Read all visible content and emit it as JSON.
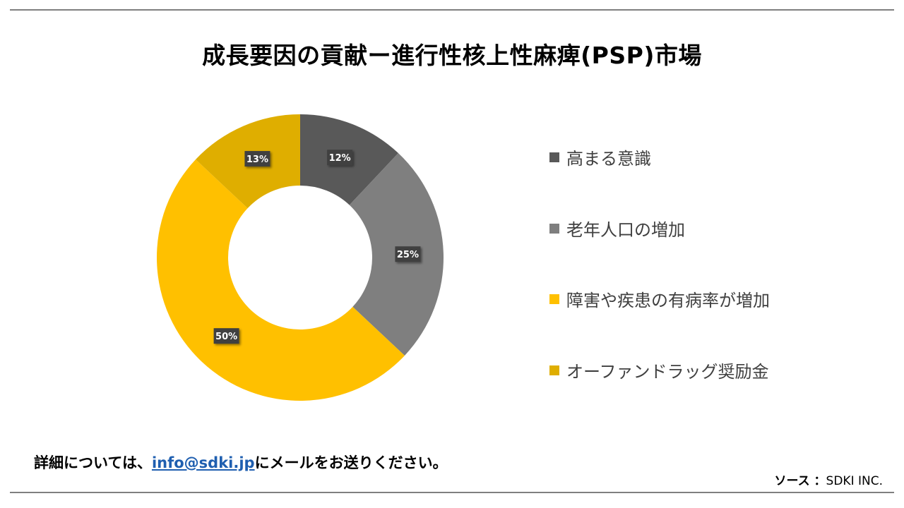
{
  "title": "成長要因の貢献ー進行性核上性麻痺(PSP)市場",
  "chart_data": {
    "type": "pie",
    "style": "donut",
    "title": "成長要因の貢献ー進行性核上性麻痺(PSP)市場",
    "series": [
      {
        "name": "高まる意識",
        "value": 12,
        "label": "12%",
        "color": "#595959"
      },
      {
        "name": "老年人口の増加",
        "value": 25,
        "label": "25%",
        "color": "#7f7f7f"
      },
      {
        "name": "障害や疾患の有病率が増加",
        "value": 50,
        "label": "50%",
        "color": "#ffc000"
      },
      {
        "name": "オーファンドラッグ奨励金",
        "value": 13,
        "label": "13%",
        "color": "#dfae00"
      }
    ],
    "legend_position": "right"
  },
  "footer": {
    "prefix": "詳細については、",
    "email": "info@sdki.jp",
    "suffix": "にメールをお送りください。"
  },
  "source": {
    "label": "ソース ：",
    "value": "SDKI INC."
  }
}
